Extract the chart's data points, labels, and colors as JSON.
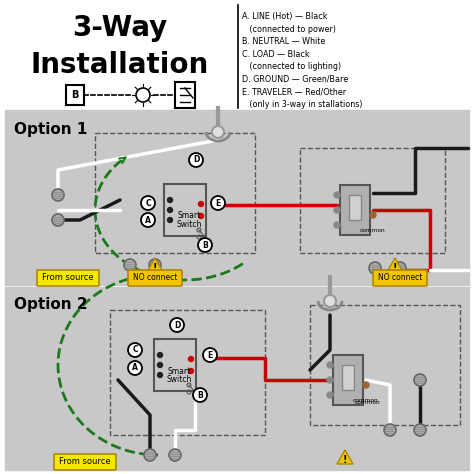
{
  "title_line1": "3-Way",
  "title_line2": "Installation",
  "bg_color": "#ffffff",
  "panel_bg": "#c8c8c8",
  "red_wire": "#cc0000",
  "black_wire": "#1a1a1a",
  "white_wire": "#ffffff",
  "green_wire": "#1a7a1a",
  "warning_yellow": "#f5c400",
  "from_source_color": "#f5e800",
  "dashed_color": "#555555",
  "option1_label": "Option 1",
  "option2_label": "Option 2",
  "legend_lines": [
    "A. LINE (Hot) — Black",
    "   (connected to power)",
    "B. NEUTRAL — White",
    "C. LOAD — Black",
    "   (connected to lighting)",
    "D. GROUND — Green/Bare",
    "E. TRAVELER — Red/Other",
    "   (only in 3-way in stallations)"
  ]
}
